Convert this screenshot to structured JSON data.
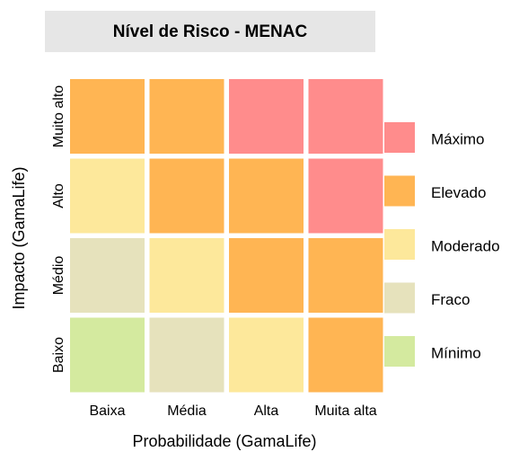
{
  "chart_data": {
    "type": "heatmap",
    "title": "Nível de Risco - MENAC",
    "x_label": "Probabilidade (GamaLife)",
    "y_label": "Impacto (GamaLife)",
    "x_categories": [
      "Baixa",
      "Média",
      "Alta",
      "Muita alta"
    ],
    "y_categories": [
      "Muito alto",
      "Alto",
      "Médio",
      "Baixo"
    ],
    "levels": [
      {
        "name": "Máximo",
        "color": "#ff8c8c"
      },
      {
        "name": "Elevado",
        "color": "#ffb553"
      },
      {
        "name": "Moderado",
        "color": "#fde89b"
      },
      {
        "name": "Fraco",
        "color": "#e6e2bc"
      },
      {
        "name": "Mínimo",
        "color": "#d4ea9f"
      }
    ],
    "cells": [
      [
        "Elevado",
        "Elevado",
        "Máximo",
        "Máximo"
      ],
      [
        "Moderado",
        "Elevado",
        "Elevado",
        "Máximo"
      ],
      [
        "Fraco",
        "Moderado",
        "Elevado",
        "Elevado"
      ],
      [
        "Mínimo",
        "Fraco",
        "Moderado",
        "Elevado"
      ]
    ]
  }
}
